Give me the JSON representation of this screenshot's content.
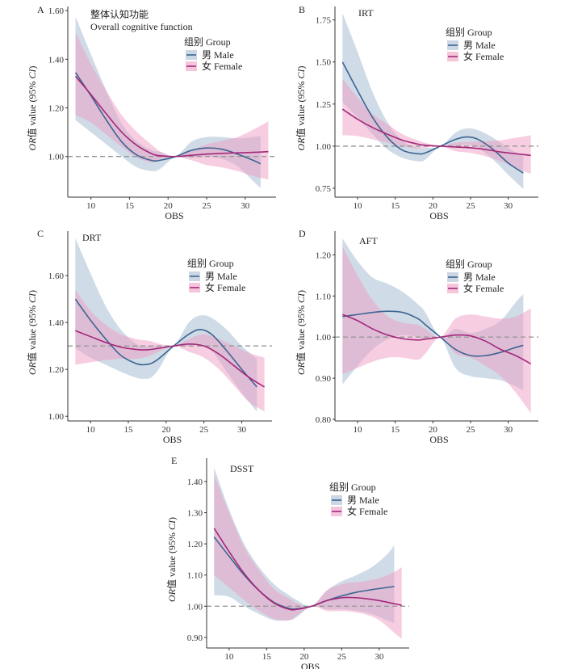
{
  "figure": {
    "colors": {
      "male_line": "#3c6592",
      "male_band": "#a8bdd2",
      "female_line": "#a3287a",
      "female_band": "#f09ec4",
      "reference_line": "#999999",
      "axis": "#333333"
    },
    "legend": {
      "title": "组别 Group",
      "male_label": "男 Male",
      "female_label": "女 Female"
    },
    "ylabel_prefix": "OR",
    "ylabel_mid": "值 value (95% ",
    "ylabel_ci": "CI",
    "ylabel_suffix": ")",
    "xlabel": "OBS"
  },
  "chart_data": [
    {
      "type": "line",
      "panel": "A",
      "title": "整体认知功能",
      "subtitle": "Overall cognitive function",
      "xlabel": "OBS",
      "ylabel": "OR值 value (95% CI)",
      "xlim": [
        7,
        34
      ],
      "ylim": [
        0.833,
        1.617
      ],
      "xticks": [
        10,
        15,
        20,
        25,
        30
      ],
      "yticks": [
        1.0,
        1.2,
        1.4,
        1.6
      ],
      "ytick_labels": [
        "1.00",
        "1.20",
        "1.40",
        "1.60"
      ],
      "reference_y": 1.0,
      "legend_position": "top-right",
      "series": [
        {
          "name": "男 Male",
          "x": [
            8,
            10,
            12,
            14,
            16,
            18,
            19,
            21,
            23,
            25,
            27,
            29,
            31,
            32
          ],
          "y": [
            1.345,
            1.25,
            1.15,
            1.06,
            1.005,
            0.983,
            0.985,
            1.0,
            1.025,
            1.035,
            1.03,
            1.01,
            0.985,
            0.97
          ],
          "lower": [
            1.15,
            1.1,
            1.05,
            1.0,
            0.955,
            0.94,
            0.95,
            1.0,
            0.995,
            1.0,
            0.99,
            0.96,
            0.9,
            0.87
          ],
          "upper": [
            1.575,
            1.42,
            1.27,
            1.135,
            1.06,
            1.025,
            1.02,
            1.0,
            1.06,
            1.08,
            1.08,
            1.075,
            1.08,
            1.085
          ]
        },
        {
          "name": "女 Female",
          "x": [
            8,
            10,
            12,
            14,
            16,
            18,
            19,
            21,
            23,
            25,
            27,
            29,
            31,
            33
          ],
          "y": [
            1.33,
            1.255,
            1.175,
            1.1,
            1.045,
            1.01,
            1.003,
            1.0,
            1.005,
            1.01,
            1.013,
            1.015,
            1.017,
            1.02
          ],
          "lower": [
            1.17,
            1.14,
            1.09,
            1.04,
            0.995,
            0.975,
            0.99,
            1.0,
            0.985,
            0.965,
            0.955,
            0.94,
            0.92,
            0.905
          ],
          "upper": [
            1.51,
            1.38,
            1.27,
            1.17,
            1.1,
            1.045,
            1.02,
            1.0,
            1.025,
            1.05,
            1.065,
            1.08,
            1.11,
            1.145
          ]
        }
      ]
    },
    {
      "type": "line",
      "panel": "B",
      "title": "IRT",
      "xlabel": "OBS",
      "ylabel": "OR值 value (95% CI)",
      "xlim": [
        7,
        34
      ],
      "ylim": [
        0.697,
        1.83
      ],
      "xticks": [
        10,
        15,
        20,
        25,
        30
      ],
      "yticks": [
        0.75,
        1.0,
        1.25,
        1.5,
        1.75
      ],
      "ytick_labels": [
        "0.75",
        "1.00",
        "1.25",
        "1.50",
        "1.75"
      ],
      "reference_y": 1.0,
      "legend_position": "top-right",
      "series": [
        {
          "name": "男 Male",
          "x": [
            8,
            10,
            12,
            14,
            16,
            18,
            19,
            21,
            23,
            24.5,
            26,
            28,
            30,
            32
          ],
          "y": [
            1.5,
            1.33,
            1.17,
            1.05,
            0.975,
            0.955,
            0.96,
            1.0,
            1.04,
            1.055,
            1.04,
            0.98,
            0.9,
            0.84
          ],
          "lower": [
            1.26,
            1.17,
            1.07,
            0.98,
            0.93,
            0.91,
            0.92,
            1.0,
            1.0,
            1.01,
            0.99,
            0.92,
            0.83,
            0.745
          ],
          "upper": [
            1.79,
            1.56,
            1.32,
            1.14,
            1.03,
            0.99,
            0.99,
            1.0,
            1.08,
            1.105,
            1.095,
            1.05,
            0.99,
            0.94
          ]
        },
        {
          "name": "女 Female",
          "x": [
            8,
            10,
            12,
            14,
            16,
            18,
            19,
            21,
            23,
            25,
            27,
            29,
            31,
            33
          ],
          "y": [
            1.22,
            1.16,
            1.11,
            1.07,
            1.035,
            1.012,
            1.005,
            1.0,
            0.995,
            0.99,
            0.98,
            0.965,
            0.955,
            0.945
          ],
          "lower": [
            1.065,
            1.06,
            1.04,
            1.02,
            1.0,
            0.985,
            0.99,
            1.0,
            0.97,
            0.96,
            0.94,
            0.91,
            0.87,
            0.835
          ],
          "upper": [
            1.4,
            1.29,
            1.19,
            1.13,
            1.07,
            1.035,
            1.02,
            1.0,
            1.02,
            1.025,
            1.03,
            1.035,
            1.05,
            1.065
          ]
        }
      ]
    },
    {
      "type": "line",
      "panel": "C",
      "title": "DRT",
      "xlabel": "OBS",
      "ylabel": "OR值 value (95% CI)",
      "xlim": [
        7,
        34
      ],
      "ylim": [
        0.98,
        1.79
      ],
      "xticks": [
        10,
        15,
        20,
        25,
        30
      ],
      "yticks": [
        1.0,
        1.2,
        1.4,
        1.6
      ],
      "ytick_labels": [
        "1.00",
        "1.20",
        "1.40",
        "1.60"
      ],
      "reference_y": 1.3,
      "legend_position": "top-right",
      "series": [
        {
          "name": "男 Male",
          "x": [
            8,
            10,
            12,
            14,
            16,
            17,
            18,
            19,
            21,
            23,
            24.5,
            26,
            28,
            30,
            32
          ],
          "y": [
            1.5,
            1.41,
            1.33,
            1.26,
            1.225,
            1.22,
            1.225,
            1.245,
            1.3,
            1.35,
            1.37,
            1.35,
            1.28,
            1.2,
            1.125
          ],
          "lower": [
            1.29,
            1.25,
            1.22,
            1.19,
            1.165,
            1.16,
            1.165,
            1.2,
            1.3,
            1.3,
            1.31,
            1.28,
            1.19,
            1.1,
            1.02
          ],
          "upper": [
            1.76,
            1.61,
            1.47,
            1.37,
            1.31,
            1.3,
            1.3,
            1.3,
            1.3,
            1.4,
            1.43,
            1.42,
            1.37,
            1.3,
            1.245
          ]
        },
        {
          "name": "女 Female",
          "x": [
            8,
            10,
            12,
            14,
            16,
            17,
            18,
            19,
            21,
            23,
            25,
            27,
            29,
            31,
            33
          ],
          "y": [
            1.365,
            1.34,
            1.315,
            1.295,
            1.285,
            1.283,
            1.285,
            1.29,
            1.3,
            1.308,
            1.3,
            1.265,
            1.215,
            1.165,
            1.125
          ],
          "lower": [
            1.22,
            1.23,
            1.24,
            1.245,
            1.245,
            1.25,
            1.26,
            1.275,
            1.3,
            1.275,
            1.25,
            1.2,
            1.13,
            1.06,
            1.02
          ],
          "upper": [
            1.54,
            1.45,
            1.39,
            1.35,
            1.33,
            1.325,
            1.32,
            1.31,
            1.3,
            1.33,
            1.35,
            1.33,
            1.3,
            1.27,
            1.25
          ]
        }
      ]
    },
    {
      "type": "line",
      "panel": "D",
      "title": "AFT",
      "xlabel": "OBS",
      "ylabel": "OR值 value (95% CI)",
      "xlim": [
        7,
        34
      ],
      "ylim": [
        0.796,
        1.258
      ],
      "xticks": [
        10,
        15,
        20,
        25,
        30
      ],
      "yticks": [
        0.8,
        0.9,
        1.0,
        1.1,
        1.2
      ],
      "ytick_labels": [
        "0.80",
        "0.90",
        "1.00",
        "1.10",
        "1.20"
      ],
      "reference_y": 1.0,
      "legend_position": "top-right",
      "series": [
        {
          "name": "男 Male",
          "x": [
            8,
            10,
            12,
            14,
            16,
            18,
            19,
            21,
            23,
            25,
            27,
            29,
            31,
            32
          ],
          "y": [
            1.05,
            1.055,
            1.06,
            1.063,
            1.06,
            1.045,
            1.03,
            1.0,
            0.97,
            0.955,
            0.955,
            0.963,
            0.975,
            0.98
          ],
          "lower": [
            0.885,
            0.93,
            0.97,
            0.995,
            1.005,
            1.0,
            0.995,
            1.0,
            0.925,
            0.905,
            0.9,
            0.895,
            0.88,
            0.87
          ],
          "upper": [
            1.24,
            1.185,
            1.145,
            1.13,
            1.11,
            1.08,
            1.06,
            1.0,
            1.02,
            1.01,
            1.02,
            1.04,
            1.085,
            1.105
          ]
        },
        {
          "name": "女 Female",
          "x": [
            8,
            10,
            12,
            14,
            16,
            18,
            19,
            21,
            23,
            25,
            27,
            29,
            31,
            33
          ],
          "y": [
            1.055,
            1.04,
            1.02,
            1.005,
            0.996,
            0.993,
            0.995,
            1.0,
            1.005,
            1.003,
            0.99,
            0.97,
            0.955,
            0.935
          ],
          "lower": [
            0.91,
            0.925,
            0.94,
            0.95,
            0.95,
            0.945,
            0.96,
            1.0,
            0.96,
            0.95,
            0.93,
            0.905,
            0.865,
            0.815
          ],
          "upper": [
            1.22,
            1.15,
            1.09,
            1.05,
            1.035,
            1.03,
            1.02,
            1.0,
            1.045,
            1.055,
            1.05,
            1.045,
            1.05,
            1.07
          ]
        }
      ]
    },
    {
      "type": "line",
      "panel": "E",
      "title": "DSST",
      "xlabel": "OBS",
      "ylabel": "OR值 value (95% CI)",
      "xlim": [
        7,
        34
      ],
      "ylim": [
        0.866,
        1.475
      ],
      "xticks": [
        10,
        15,
        20,
        25,
        30
      ],
      "yticks": [
        0.9,
        1.0,
        1.1,
        1.2,
        1.3,
        1.4
      ],
      "ytick_labels": [
        "0.90",
        "1.00",
        "1.10",
        "1.20",
        "1.30",
        "1.40"
      ],
      "reference_y": 1.0,
      "legend_position": "top-right",
      "series": [
        {
          "name": "男 Male",
          "x": [
            8,
            10,
            12,
            14,
            16,
            18,
            19,
            21,
            23,
            25,
            27,
            29,
            31,
            32
          ],
          "y": [
            1.222,
            1.16,
            1.1,
            1.05,
            1.012,
            0.993,
            0.992,
            1.0,
            1.018,
            1.033,
            1.045,
            1.053,
            1.06,
            1.063
          ],
          "lower": [
            1.035,
            1.03,
            1.0,
            0.975,
            0.955,
            0.955,
            0.965,
            1.0,
            0.99,
            0.99,
            0.985,
            0.975,
            0.955,
            0.945
          ],
          "upper": [
            1.445,
            1.31,
            1.2,
            1.125,
            1.07,
            1.035,
            1.02,
            1.0,
            1.05,
            1.08,
            1.1,
            1.125,
            1.165,
            1.195
          ]
        },
        {
          "name": "女 Female",
          "x": [
            8,
            10,
            12,
            14,
            16,
            18,
            19,
            21,
            23,
            25,
            26,
            28,
            30,
            32,
            33
          ],
          "y": [
            1.25,
            1.175,
            1.105,
            1.05,
            1.01,
            0.99,
            0.99,
            1.0,
            1.018,
            1.027,
            1.028,
            1.025,
            1.018,
            1.008,
            1.003
          ],
          "lower": [
            1.1,
            1.06,
            1.02,
            0.985,
            0.96,
            0.955,
            0.97,
            1.0,
            0.985,
            0.985,
            0.983,
            0.975,
            0.955,
            0.915,
            0.895
          ],
          "upper": [
            1.42,
            1.3,
            1.19,
            1.115,
            1.055,
            1.025,
            1.01,
            1.0,
            1.05,
            1.07,
            1.075,
            1.08,
            1.09,
            1.11,
            1.125
          ]
        }
      ]
    }
  ]
}
